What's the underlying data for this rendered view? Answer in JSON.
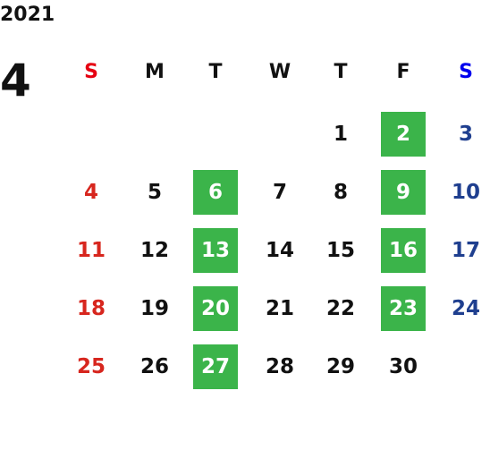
{
  "header": {
    "year": "2021",
    "month": "4"
  },
  "weekdays": [
    {
      "label": "S",
      "color": "#e60012",
      "day_color": "#d7261e"
    },
    {
      "label": "M",
      "color": "#111111",
      "day_color": "#111111"
    },
    {
      "label": "T",
      "color": "#111111",
      "day_color": "#111111"
    },
    {
      "label": "W",
      "color": "#111111",
      "day_color": "#111111"
    },
    {
      "label": "T",
      "color": "#111111",
      "day_color": "#111111"
    },
    {
      "label": "F",
      "color": "#111111",
      "day_color": "#111111"
    },
    {
      "label": "S",
      "color": "#0000ee",
      "day_color": "#1f3f8f"
    }
  ],
  "highlight": {
    "background": "#3bb44a",
    "color": "#ffffff"
  },
  "weeks": [
    [
      null,
      null,
      null,
      null,
      {
        "day": 1
      },
      {
        "day": 2,
        "highlighted": true
      },
      {
        "day": 3
      }
    ],
    [
      {
        "day": 4
      },
      {
        "day": 5
      },
      {
        "day": 6,
        "highlighted": true
      },
      {
        "day": 7
      },
      {
        "day": 8
      },
      {
        "day": 9,
        "highlighted": true
      },
      {
        "day": 10
      }
    ],
    [
      {
        "day": 11
      },
      {
        "day": 12
      },
      {
        "day": 13,
        "highlighted": true
      },
      {
        "day": 14
      },
      {
        "day": 15
      },
      {
        "day": 16,
        "highlighted": true
      },
      {
        "day": 17
      }
    ],
    [
      {
        "day": 18
      },
      {
        "day": 19
      },
      {
        "day": 20,
        "highlighted": true
      },
      {
        "day": 21
      },
      {
        "day": 22
      },
      {
        "day": 23,
        "highlighted": true
      },
      {
        "day": 24
      }
    ],
    [
      {
        "day": 25
      },
      {
        "day": 26
      },
      {
        "day": 27,
        "highlighted": true
      },
      {
        "day": 28
      },
      {
        "day": 29
      },
      {
        "day": 30
      },
      null
    ]
  ]
}
